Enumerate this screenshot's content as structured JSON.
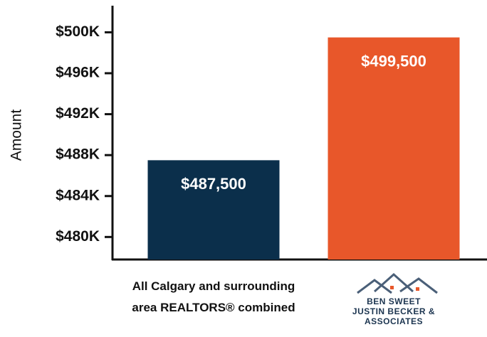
{
  "chart_data": {
    "type": "bar",
    "y_label": "Amount",
    "categories": [
      "All Calgary and surrounding area REALTORS® combined",
      "BEN SWEET JUSTIN BECKER & ASSOCIATES"
    ],
    "values": [
      487500,
      499500
    ],
    "value_labels": [
      "$487,500",
      "$499,500"
    ],
    "colors": [
      "#0b2f4b",
      "#e8572a"
    ],
    "ylim": [
      477800,
      502600
    ],
    "yticks": [
      {
        "value": 480000,
        "label": "$480K"
      },
      {
        "value": 484000,
        "label": "$484K"
      },
      {
        "value": 488000,
        "label": "$488K"
      },
      {
        "value": 492000,
        "label": "$492K"
      },
      {
        "value": 496000,
        "label": "$496K"
      },
      {
        "value": 500000,
        "label": "$500K"
      }
    ],
    "grid": false
  }
}
